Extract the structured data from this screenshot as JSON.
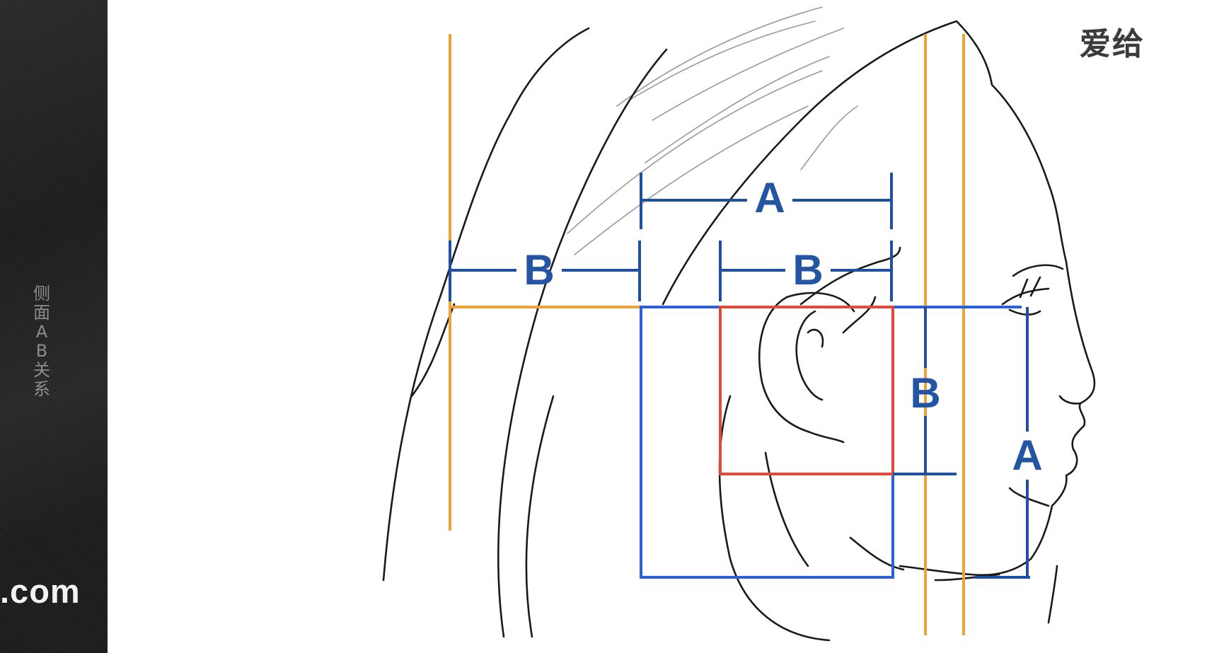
{
  "sidebar": {
    "caption": "侧面AB关系",
    "domain_fragment": ".com"
  },
  "watermark": "爱给",
  "diagram": {
    "labels": {
      "top_a": "A",
      "upper_b_left": "B",
      "upper_b_right": "B",
      "right_b": "B",
      "right_a": "A"
    },
    "colors": {
      "guide_orange": "#eaa33a",
      "box_blue": "#2d5fd6",
      "dimension_blue": "#1f4f9e",
      "square_red": "#e04a3c",
      "label_blue": "#2455a4"
    }
  }
}
